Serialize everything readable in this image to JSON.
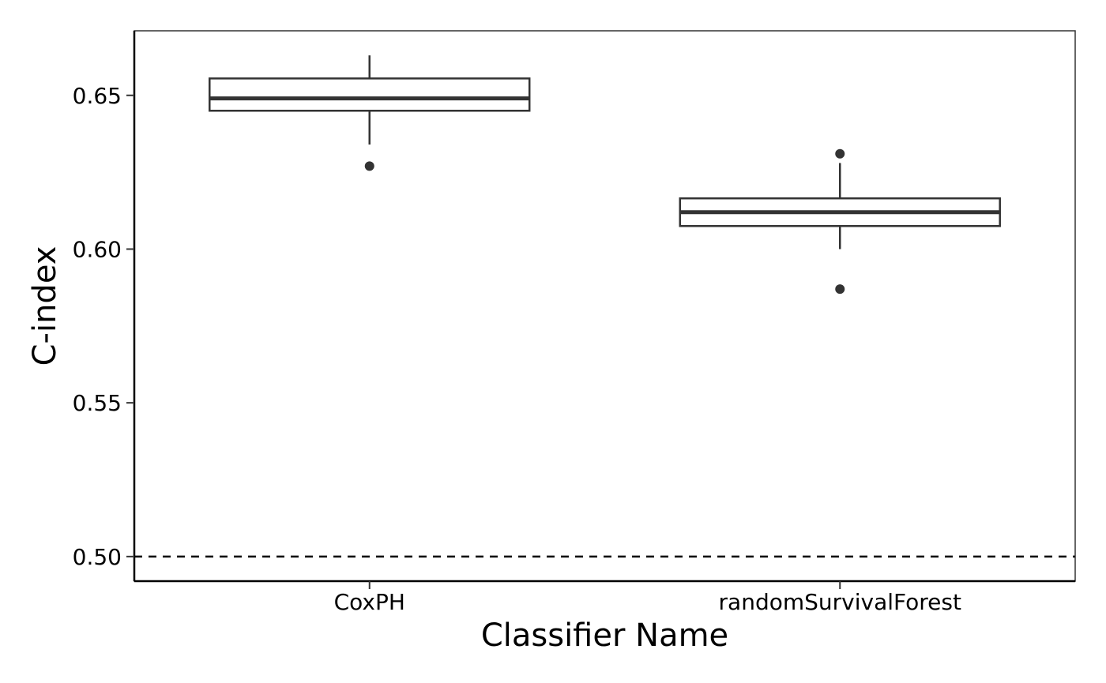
{
  "chart_data": {
    "type": "boxplot",
    "title": "",
    "xlabel": "Classifier Name",
    "ylabel": "C-index",
    "categories": [
      "CoxPH",
      "randomSurvivalForest"
    ],
    "boxes": [
      {
        "category": "CoxPH",
        "whisker_low": 0.634,
        "q1": 0.645,
        "median": 0.649,
        "q3": 0.6555,
        "whisker_high": 0.663,
        "outliers": [
          0.627
        ]
      },
      {
        "category": "randomSurvivalForest",
        "whisker_low": 0.6,
        "q1": 0.6075,
        "median": 0.612,
        "q3": 0.6165,
        "whisker_high": 0.628,
        "outliers": [
          0.631,
          0.587
        ]
      }
    ],
    "yticks": [
      0.5,
      0.55,
      0.6,
      0.65
    ],
    "ytick_labels": [
      "0.50",
      "0.55",
      "0.60",
      "0.65"
    ],
    "ylim": [
      0.492,
      0.671
    ],
    "reference_line": {
      "y": 0.5,
      "style": "dashed"
    },
    "grid": false,
    "legend": "none",
    "colors": {
      "box_stroke": "#333333",
      "box_fill": "#ffffff",
      "axis": "#000000",
      "reference_line": "#000000"
    }
  }
}
